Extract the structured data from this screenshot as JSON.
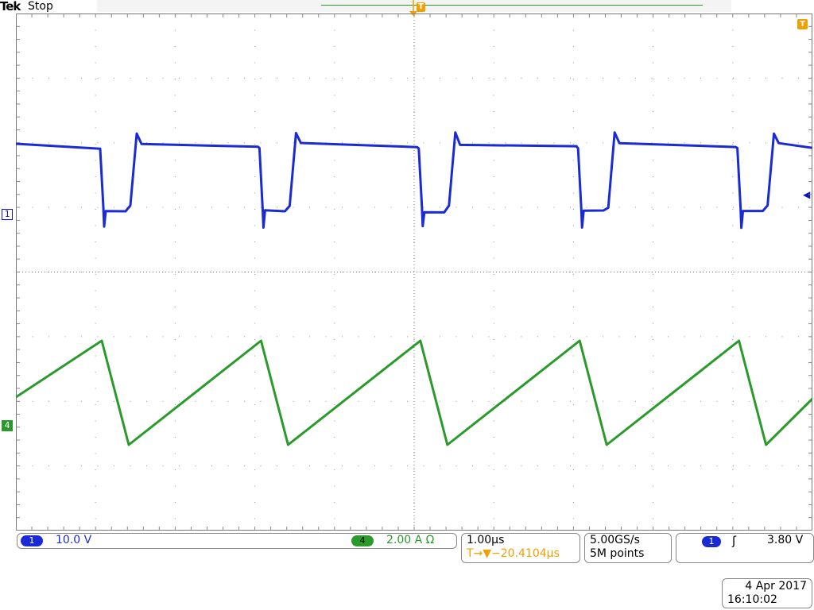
{
  "header": {
    "brand": "Tek",
    "acquisition_status": "Stop",
    "trigger_position_label": "T",
    "trigger_level_label": "T"
  },
  "markers": {
    "ch1": "1",
    "ch4": "4"
  },
  "channels": {
    "ch1": {
      "badge": "1",
      "scale": "10.0 V",
      "color": "#1a2bd6"
    },
    "ch4": {
      "badge": "4",
      "scale": "2.00 A Ω",
      "color": "#2a9a2a"
    }
  },
  "horizontal": {
    "timebase": "1.00µs",
    "trigger_delay": "T→▼−20.4104µs"
  },
  "acquisition": {
    "sample_rate": "5.00GS/s",
    "record_length": "5M points"
  },
  "trigger": {
    "source_badge": "1",
    "slope_icon": "rising-edge-icon",
    "slope_glyph": "ʃ",
    "level": "3.80 V",
    "color": "#f0a000"
  },
  "timestamp": {
    "date": "4 Apr 2017",
    "time": "16:10:02"
  },
  "colors": {
    "ch1_trace": "#1a2bd6",
    "ch4_trace": "#2a9a2a",
    "trigger_accent": "#f0a000"
  }
}
